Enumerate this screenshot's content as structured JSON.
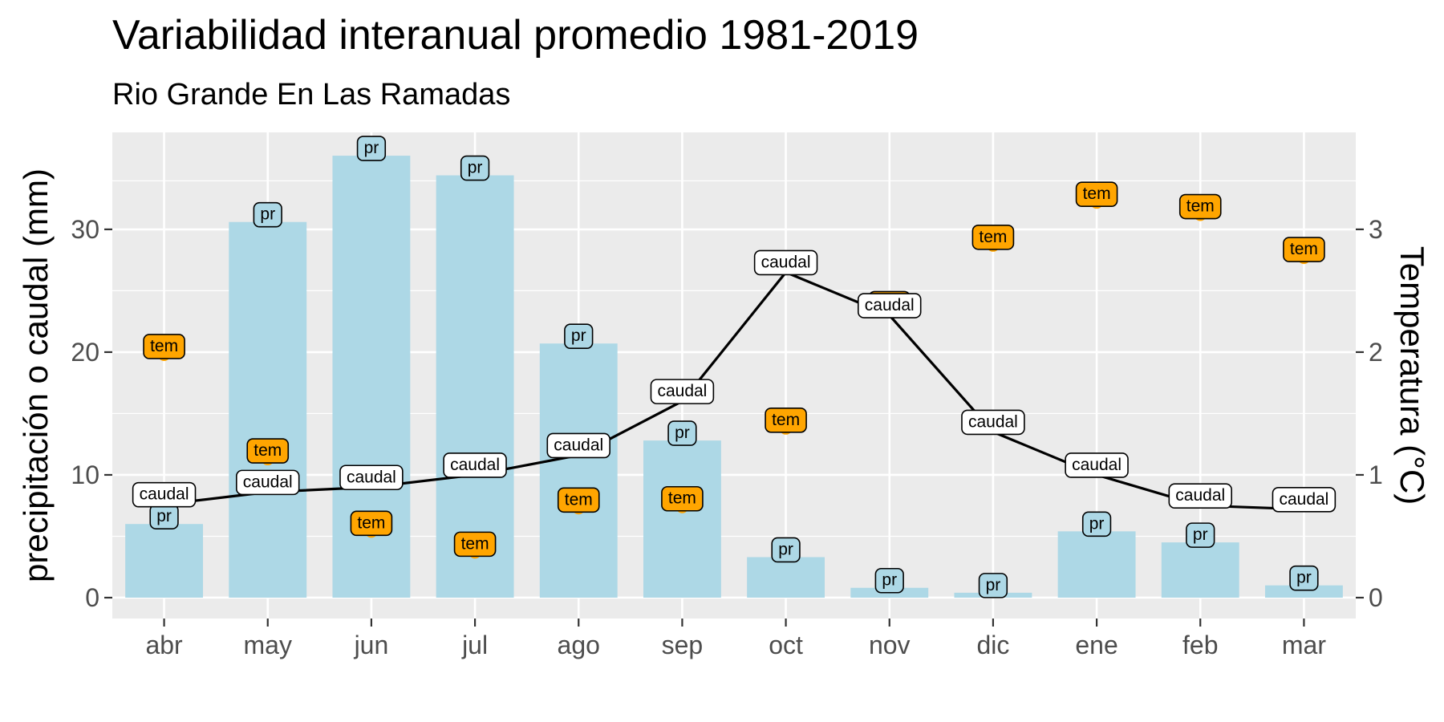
{
  "chart_data": {
    "type": "bar+line+scatter",
    "title": "Variabilidad interanual promedio 1981-2019",
    "subtitle": "Rio Grande En Las Ramadas",
    "ylabel": "precipitación o caudal (mm)",
    "y2label": "Temperatura (°C)",
    "categories": [
      "abr",
      "may",
      "jun",
      "jul",
      "ago",
      "sep",
      "oct",
      "nov",
      "dic",
      "ene",
      "feb",
      "mar"
    ],
    "ylim": [
      -1.7,
      37.9
    ],
    "yticks": [
      0,
      10,
      20,
      30
    ],
    "y2lim": [
      -0.17,
      3.79
    ],
    "y2ticks": [
      0,
      1,
      2,
      3
    ],
    "grid": true,
    "colors": {
      "pr": "#add8e6",
      "tem": "#ffa500",
      "caudal": "#ffffff",
      "line": "#000000",
      "panel": "#ebebeb",
      "grid": "#ffffff"
    },
    "series": [
      {
        "name": "pr",
        "kind": "bar",
        "label": "pr",
        "values": [
          6.0,
          30.6,
          36.0,
          34.4,
          20.7,
          12.8,
          3.3,
          0.8,
          0.4,
          5.4,
          4.5,
          1.0
        ]
      },
      {
        "name": "caudal",
        "kind": "line",
        "label": "caudal",
        "values": [
          7.6,
          8.6,
          9.0,
          10.0,
          11.6,
          16.0,
          26.5,
          23.0,
          13.5,
          10.0,
          7.5,
          7.2
        ]
      },
      {
        "name": "tem",
        "kind": "point",
        "axis": "right",
        "label": "tem",
        "values": [
          1.98,
          1.13,
          0.54,
          0.37,
          0.73,
          0.74,
          1.38,
          2.33,
          2.87,
          3.22,
          3.12,
          2.77
        ]
      }
    ]
  }
}
